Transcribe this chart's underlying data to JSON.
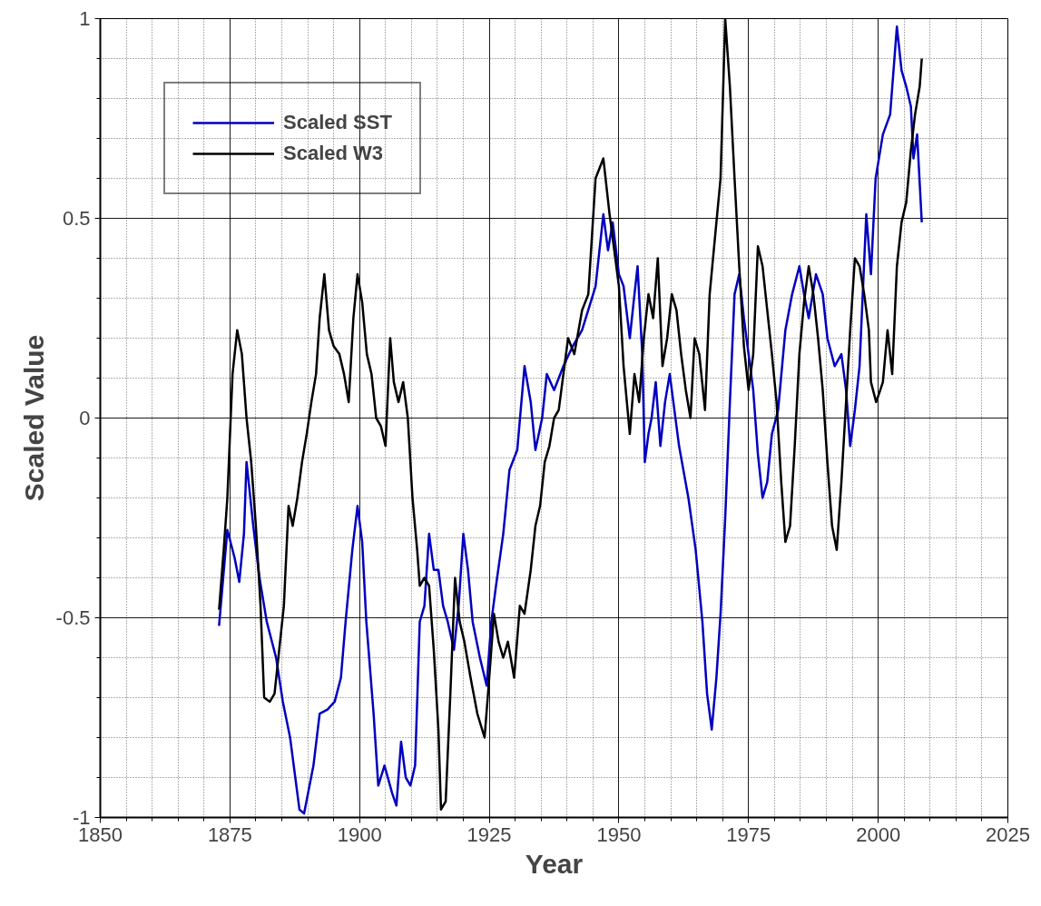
{
  "chart_data": {
    "type": "line",
    "xlabel": "Year",
    "ylabel": "Scaled Value",
    "xlim": [
      1850,
      2025
    ],
    "ylim": [
      -1,
      1
    ],
    "xticks": [
      1850,
      1875,
      1900,
      1925,
      1950,
      1975,
      2000,
      2025
    ],
    "yticks": [
      -1,
      -0.5,
      0,
      0.5,
      1
    ],
    "grid": true,
    "legend": "top left",
    "line_style": "solid",
    "marker": "none",
    "series": [
      {
        "name": "Scaled SST",
        "color": "#0000c0",
        "x": [
          1872.9,
          1874.5,
          1875.9,
          1876.8,
          1877.7,
          1878.2,
          1879.5,
          1880.7,
          1882.1,
          1883.9,
          1885.2,
          1886.6,
          1888.4,
          1889.3,
          1891.1,
          1892.3,
          1893.8,
          1895.2,
          1896.4,
          1897.3,
          1898.6,
          1899.6,
          1900.5,
          1901.3,
          1902.7,
          1903.6,
          1904.8,
          1906.3,
          1907.1,
          1908.0,
          1908.9,
          1909.8,
          1910.7,
          1911.6,
          1912.5,
          1913.4,
          1914.3,
          1915.2,
          1916.1,
          1917.0,
          1918.2,
          1919.1,
          1920.0,
          1920.9,
          1921.8,
          1923.2,
          1924.5,
          1925.4,
          1926.3,
          1927.7,
          1928.9,
          1930.4,
          1931.8,
          1933.0,
          1933.9,
          1935.2,
          1936.1,
          1937.5,
          1939.3,
          1941.1,
          1942.9,
          1945.5,
          1947.0,
          1947.9,
          1948.8,
          1950.0,
          1950.9,
          1952.1,
          1953.0,
          1953.6,
          1954.5,
          1955.0,
          1955.7,
          1956.3,
          1957.1,
          1958.0,
          1958.9,
          1959.8,
          1960.7,
          1961.6,
          1963.4,
          1964.8,
          1966.1,
          1967.0,
          1967.9,
          1968.8,
          1969.6,
          1970.5,
          1971.4,
          1972.3,
          1973.2,
          1974.1,
          1975.0,
          1975.9,
          1976.8,
          1977.7,
          1978.6,
          1979.5,
          1980.7,
          1982.1,
          1983.4,
          1984.8,
          1985.7,
          1986.6,
          1988.0,
          1989.3,
          1990.2,
          1991.6,
          1992.9,
          1993.8,
          1994.6,
          1995.5,
          1996.4,
          1997.7,
          1998.6,
          1999.5,
          2000.9,
          2002.3,
          2003.6,
          2004.5,
          2005.4,
          2006.3,
          2006.8,
          2007.5,
          2008.4
        ],
        "values": [
          -0.52,
          -0.28,
          -0.35,
          -0.41,
          -0.29,
          -0.11,
          -0.27,
          -0.4,
          -0.51,
          -0.6,
          -0.71,
          -0.8,
          -0.98,
          -0.99,
          -0.87,
          -0.74,
          -0.73,
          -0.71,
          -0.65,
          -0.51,
          -0.33,
          -0.22,
          -0.31,
          -0.51,
          -0.74,
          -0.92,
          -0.87,
          -0.94,
          -0.97,
          -0.81,
          -0.9,
          -0.92,
          -0.87,
          -0.51,
          -0.47,
          -0.29,
          -0.38,
          -0.38,
          -0.47,
          -0.51,
          -0.58,
          -0.47,
          -0.29,
          -0.38,
          -0.51,
          -0.6,
          -0.67,
          -0.51,
          -0.42,
          -0.29,
          -0.13,
          -0.08,
          0.13,
          0.04,
          -0.08,
          0,
          0.11,
          0.07,
          0.13,
          0.18,
          0.22,
          0.33,
          0.51,
          0.42,
          0.49,
          0.36,
          0.33,
          0.2,
          0.31,
          0.38,
          0.16,
          -0.11,
          -0.04,
          0,
          0.09,
          -0.07,
          0.04,
          0.11,
          0.02,
          -0.07,
          -0.2,
          -0.33,
          -0.51,
          -0.69,
          -0.78,
          -0.65,
          -0.49,
          -0.25,
          0.04,
          0.31,
          0.36,
          0.25,
          0.16,
          0.07,
          -0.09,
          -0.2,
          -0.16,
          -0.04,
          0.02,
          0.22,
          0.31,
          0.38,
          0.31,
          0.25,
          0.36,
          0.31,
          0.2,
          0.13,
          0.16,
          0.07,
          -0.07,
          0.02,
          0.13,
          0.51,
          0.36,
          0.6,
          0.71,
          0.76,
          0.98,
          0.87,
          0.83,
          0.78,
          0.65,
          0.71,
          0.49
        ]
      },
      {
        "name": "Scaled W3",
        "color": "#000000",
        "x": [
          1872.9,
          1873.8,
          1874.5,
          1875.5,
          1876.4,
          1877.3,
          1878.2,
          1879.1,
          1880.0,
          1880.9,
          1881.6,
          1882.7,
          1883.6,
          1884.5,
          1885.4,
          1886.3,
          1887.1,
          1888.0,
          1888.9,
          1889.8,
          1890.7,
          1891.6,
          1892.3,
          1893.2,
          1894.1,
          1895.0,
          1896.1,
          1897.0,
          1897.9,
          1898.8,
          1899.6,
          1900.5,
          1901.4,
          1902.3,
          1903.2,
          1904.1,
          1905.0,
          1905.9,
          1906.6,
          1907.5,
          1908.4,
          1909.3,
          1910.2,
          1911.1,
          1911.6,
          1912.5,
          1913.4,
          1914.3,
          1915.2,
          1915.7,
          1916.6,
          1917.5,
          1918.4,
          1919.3,
          1920.2,
          1921.4,
          1922.7,
          1924.1,
          1925.0,
          1925.9,
          1926.8,
          1927.7,
          1928.6,
          1929.8,
          1930.9,
          1931.8,
          1933.0,
          1933.9,
          1934.8,
          1935.7,
          1936.6,
          1937.5,
          1938.4,
          1940.2,
          1941.4,
          1942.9,
          1944.1,
          1945.5,
          1947.0,
          1948.2,
          1949.1,
          1950.0,
          1950.9,
          1952.1,
          1953.0,
          1953.9,
          1954.8,
          1955.7,
          1956.6,
          1957.5,
          1958.4,
          1959.3,
          1960.2,
          1961.1,
          1962.0,
          1962.9,
          1963.8,
          1964.6,
          1965.5,
          1966.6,
          1967.5,
          1968.8,
          1969.6,
          1970.5,
          1971.4,
          1972.3,
          1973.2,
          1974.1,
          1975.0,
          1975.9,
          1976.8,
          1977.7,
          1978.6,
          1979.5,
          1980.4,
          1981.3,
          1982.1,
          1983.0,
          1983.9,
          1984.8,
          1985.7,
          1986.6,
          1987.5,
          1988.4,
          1989.3,
          1990.2,
          1991.1,
          1992.0,
          1992.9,
          1993.8,
          1994.6,
          1995.5,
          1996.4,
          1997.3,
          1998.2,
          1998.6,
          1999.6,
          2000.4,
          2000.9,
          2001.8,
          2002.7,
          2003.6,
          2004.5,
          2005.4,
          2006.3,
          2007.1,
          2008.0,
          2008.4
        ],
        "values": [
          -0.48,
          -0.33,
          -0.2,
          0.11,
          0.22,
          0.16,
          0,
          -0.11,
          -0.27,
          -0.47,
          -0.7,
          -0.71,
          -0.69,
          -0.58,
          -0.47,
          -0.22,
          -0.27,
          -0.2,
          -0.11,
          -0.04,
          0.04,
          0.11,
          0.25,
          0.36,
          0.22,
          0.18,
          0.16,
          0.11,
          0.04,
          0.25,
          0.36,
          0.29,
          0.16,
          0.11,
          0,
          -0.02,
          -0.07,
          0.2,
          0.09,
          0.04,
          0.09,
          0,
          -0.2,
          -0.33,
          -0.42,
          -0.4,
          -0.42,
          -0.58,
          -0.78,
          -0.98,
          -0.96,
          -0.69,
          -0.4,
          -0.51,
          -0.56,
          -0.65,
          -0.74,
          -0.8,
          -0.65,
          -0.49,
          -0.56,
          -0.6,
          -0.56,
          -0.65,
          -0.47,
          -0.49,
          -0.38,
          -0.27,
          -0.22,
          -0.11,
          -0.07,
          0,
          0.02,
          0.2,
          0.16,
          0.27,
          0.31,
          0.6,
          0.65,
          0.51,
          0.42,
          0.33,
          0.13,
          -0.04,
          0.11,
          0.04,
          0.2,
          0.31,
          0.25,
          0.4,
          0.13,
          0.2,
          0.31,
          0.27,
          0.16,
          0.07,
          0,
          0.2,
          0.16,
          0.02,
          0.31,
          0.49,
          0.6,
          1.0,
          0.83,
          0.6,
          0.38,
          0.18,
          0.07,
          0.16,
          0.43,
          0.38,
          0.27,
          0.16,
          0.04,
          -0.16,
          -0.31,
          -0.27,
          -0.07,
          0.16,
          0.29,
          0.38,
          0.31,
          0.2,
          0.07,
          -0.11,
          -0.27,
          -0.33,
          -0.16,
          0.04,
          0.22,
          0.4,
          0.38,
          0.31,
          0.22,
          0.09,
          0.04,
          0.07,
          0.09,
          0.22,
          0.11,
          0.38,
          0.49,
          0.54,
          0.67,
          0.76,
          0.83,
          0.9
        ]
      }
    ]
  }
}
